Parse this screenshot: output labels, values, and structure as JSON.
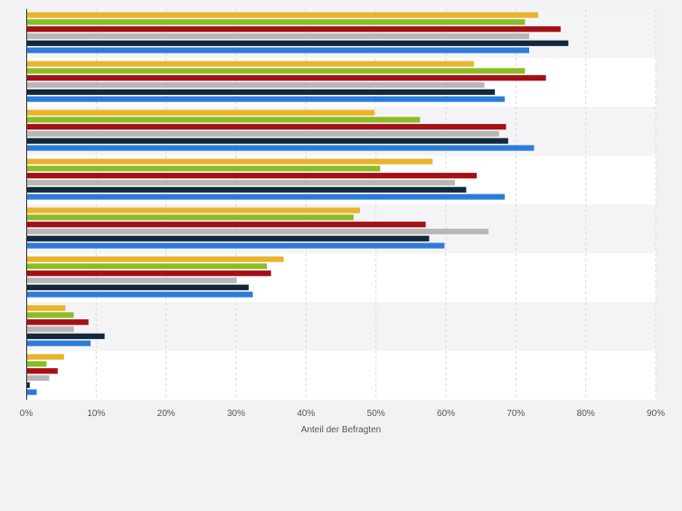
{
  "chart_data": {
    "type": "bar",
    "orientation": "horizontal",
    "categories": [
      "",
      "",
      "",
      "",
      "",
      "",
      "",
      ""
    ],
    "series": [
      {
        "color": "#e8b42d",
        "values": [
          73.2,
          64.0,
          49.8,
          58.1,
          47.7,
          36.8,
          5.6,
          5.4
        ]
      },
      {
        "color": "#8bbc21",
        "values": [
          71.3,
          71.3,
          56.3,
          50.6,
          46.8,
          34.4,
          6.8,
          2.9
        ]
      },
      {
        "color": "#a50f15",
        "values": [
          76.4,
          74.3,
          68.6,
          64.4,
          57.1,
          35.0,
          8.9,
          4.5
        ]
      },
      {
        "color": "#b7b7b7",
        "values": [
          71.9,
          65.5,
          67.6,
          61.3,
          66.1,
          30.1,
          6.8,
          3.3
        ]
      },
      {
        "color": "#14283d",
        "values": [
          77.5,
          67.0,
          68.9,
          62.9,
          57.6,
          31.8,
          11.2,
          0.5
        ]
      },
      {
        "color": "#2d7bd9",
        "values": [
          71.9,
          68.4,
          72.6,
          68.4,
          59.8,
          32.4,
          9.2,
          1.5
        ]
      }
    ],
    "xlim": [
      0,
      90
    ],
    "x_ticks": [
      "0%",
      "10%",
      "20%",
      "30%",
      "40%",
      "50%",
      "60%",
      "70%",
      "80%",
      "90%"
    ],
    "xlabel": "Anteil der Befragten",
    "ylabel": "",
    "title": "",
    "grid": true,
    "legend": "none"
  }
}
